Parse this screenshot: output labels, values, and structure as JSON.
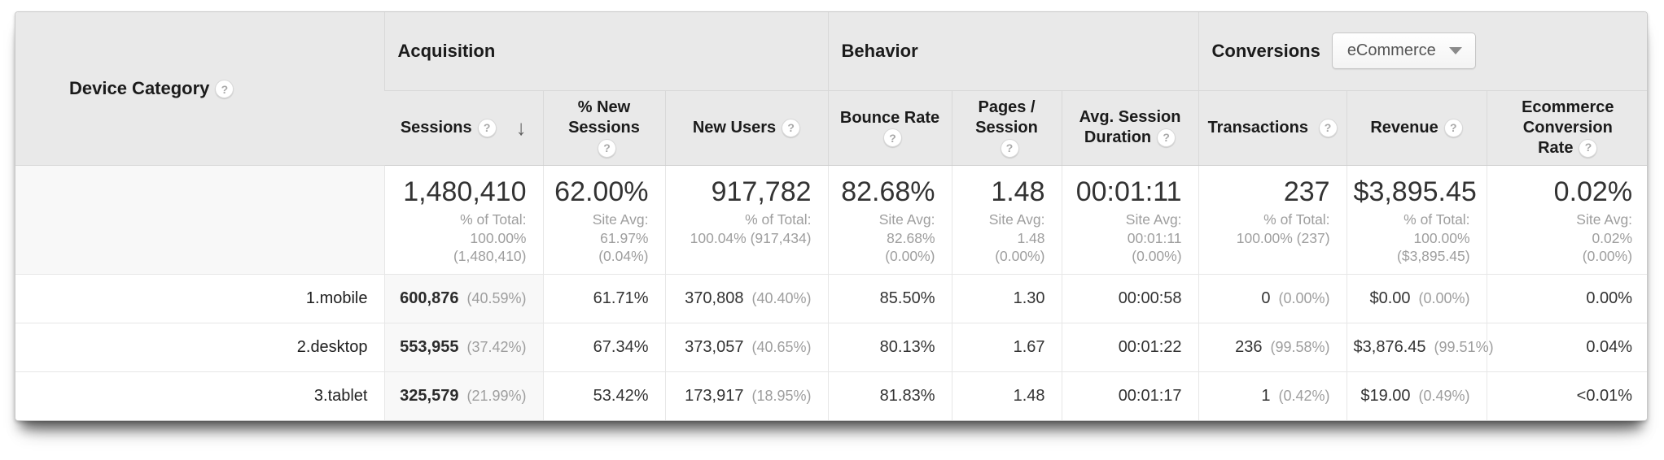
{
  "table": {
    "dimension_header": {
      "label": "Device Category"
    },
    "groups": {
      "acquisition": "Acquisition",
      "behavior": "Behavior",
      "conversions": "Conversions"
    },
    "conversions_selector": {
      "value": "eCommerce"
    },
    "columns": {
      "sessions": "Sessions",
      "new_sessions_pct": "% New Sessions",
      "new_users": "New Users",
      "bounce_rate": "Bounce Rate",
      "pages_session": "Pages / Session",
      "avg_duration": "Avg. Session Duration",
      "transactions": "Transactions",
      "revenue": "Revenue",
      "ecommerce_cr": "Ecommerce Conversion Rate"
    },
    "icons": {
      "help": "?",
      "sort_desc": "↓"
    },
    "summary": {
      "sessions": {
        "value": "1,480,410",
        "sub": [
          "% of Total:",
          "100.00%",
          "(1,480,410)"
        ]
      },
      "new_sessions_pct": {
        "value": "62.00%",
        "sub": [
          "Site Avg:",
          "61.97%",
          "(0.04%)"
        ]
      },
      "new_users": {
        "value": "917,782",
        "sub": [
          "% of Total:",
          "100.04% (917,434)"
        ]
      },
      "bounce_rate": {
        "value": "82.68%",
        "sub": [
          "Site Avg:",
          "82.68%",
          "(0.00%)"
        ]
      },
      "pages_session": {
        "value": "1.48",
        "sub": [
          "Site Avg:",
          "1.48",
          "(0.00%)"
        ]
      },
      "avg_duration": {
        "value": "00:01:11",
        "sub": [
          "Site Avg:",
          "00:01:11",
          "(0.00%)"
        ]
      },
      "transactions": {
        "value": "237",
        "sub": [
          "% of Total:",
          "100.00% (237)"
        ]
      },
      "revenue": {
        "value": "$3,895.45",
        "sub": [
          "% of Total: 100.00%",
          "($3,895.45)"
        ]
      },
      "ecommerce_cr": {
        "value": "0.02%",
        "sub": [
          "Site Avg:",
          "0.02%",
          "(0.00%)"
        ]
      }
    },
    "rows": [
      {
        "index": "1.",
        "label": "mobile",
        "sessions": {
          "value": "600,876",
          "share": "(40.59%)"
        },
        "new_sessions_pct": "61.71%",
        "new_users": {
          "value": "370,808",
          "share": "(40.40%)"
        },
        "bounce_rate": "85.50%",
        "pages_session": "1.30",
        "avg_duration": "00:00:58",
        "transactions": {
          "value": "0",
          "share": "(0.00%)"
        },
        "revenue": {
          "value": "$0.00",
          "share": "(0.00%)"
        },
        "ecommerce_cr": "0.00%"
      },
      {
        "index": "2.",
        "label": "desktop",
        "sessions": {
          "value": "553,955",
          "share": "(37.42%)"
        },
        "new_sessions_pct": "67.34%",
        "new_users": {
          "value": "373,057",
          "share": "(40.65%)"
        },
        "bounce_rate": "80.13%",
        "pages_session": "1.67",
        "avg_duration": "00:01:22",
        "transactions": {
          "value": "236",
          "share": "(99.58%)"
        },
        "revenue": {
          "value": "$3,876.45",
          "share": "(99.51%)"
        },
        "ecommerce_cr": "0.04%"
      },
      {
        "index": "3.",
        "label": "tablet",
        "sessions": {
          "value": "325,579",
          "share": "(21.99%)"
        },
        "new_sessions_pct": "53.42%",
        "new_users": {
          "value": "173,917",
          "share": "(18.95%)"
        },
        "bounce_rate": "81.83%",
        "pages_session": "1.48",
        "avg_duration": "00:01:17",
        "transactions": {
          "value": "1",
          "share": "(0.42%)"
        },
        "revenue": {
          "value": "$19.00",
          "share": "(0.49%)"
        },
        "ecommerce_cr": "<0.01%"
      }
    ]
  }
}
